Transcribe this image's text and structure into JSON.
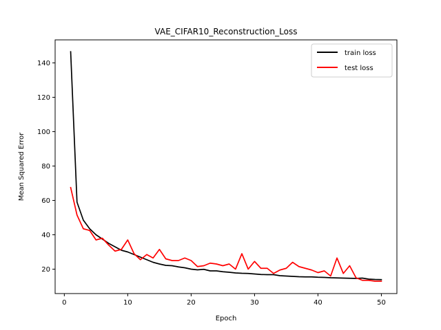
{
  "chart_data": {
    "type": "line",
    "title": "VAE_CIFAR10_Reconstruction_Loss",
    "xlabel": "Epoch",
    "ylabel": "Mean Squared Error",
    "xlim": [
      -1.45,
      52.45
    ],
    "ylim": [
      5.8,
      153.4
    ],
    "xticks": [
      0,
      10,
      20,
      30,
      40,
      50
    ],
    "yticks": [
      20,
      40,
      60,
      80,
      100,
      120,
      140
    ],
    "grid": false,
    "legend_position": "top-right",
    "x": [
      1,
      2,
      3,
      4,
      5,
      6,
      7,
      8,
      9,
      10,
      11,
      12,
      13,
      14,
      15,
      16,
      17,
      18,
      19,
      20,
      21,
      22,
      23,
      24,
      25,
      26,
      27,
      28,
      29,
      30,
      31,
      32,
      33,
      34,
      35,
      36,
      37,
      38,
      39,
      40,
      41,
      42,
      43,
      44,
      45,
      46,
      47,
      48,
      49,
      50
    ],
    "series": [
      {
        "name": "train loss",
        "color": "#000000",
        "values": [
          146.5,
          59.0,
          48.5,
          43.5,
          40.0,
          37.5,
          35.0,
          33.0,
          31.0,
          30.0,
          28.5,
          27.0,
          25.5,
          24.0,
          23.0,
          22.2,
          22.0,
          21.3,
          20.8,
          20.0,
          19.6,
          19.9,
          19.0,
          19.0,
          18.5,
          18.2,
          17.8,
          17.6,
          17.5,
          17.2,
          16.9,
          16.8,
          16.8,
          16.2,
          16.0,
          15.8,
          15.6,
          15.5,
          15.5,
          15.3,
          15.2,
          15.0,
          14.9,
          14.8,
          14.7,
          14.6,
          14.8,
          14.2,
          14.0,
          13.9
        ]
      },
      {
        "name": "test loss",
        "color": "#ff0000",
        "values": [
          67.5,
          51.5,
          43.5,
          42.5,
          37.0,
          38.0,
          34.0,
          30.5,
          31.5,
          37.0,
          29.0,
          25.5,
          28.5,
          26.5,
          31.5,
          26.0,
          25.0,
          25.0,
          26.5,
          25.0,
          21.5,
          22.0,
          23.5,
          23.0,
          22.0,
          23.0,
          20.0,
          29.0,
          20.0,
          24.5,
          20.5,
          20.5,
          17.5,
          19.5,
          20.5,
          24.0,
          21.5,
          20.5,
          19.5,
          18.0,
          19.0,
          16.0,
          26.5,
          17.5,
          22.0,
          15.0,
          13.5,
          13.5,
          13.0,
          13.0
        ]
      }
    ]
  }
}
